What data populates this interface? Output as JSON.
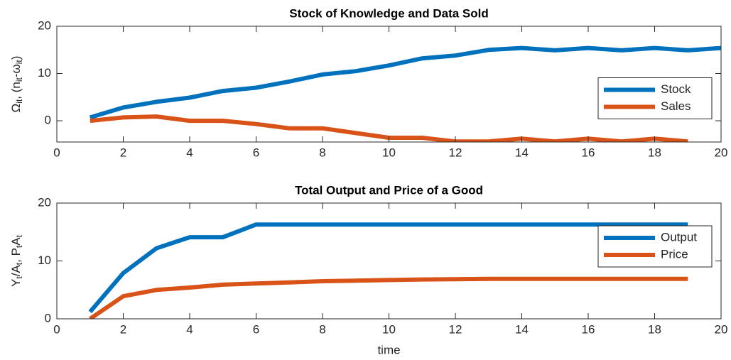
{
  "chart_data": [
    {
      "type": "line",
      "title": "Stock of Knowledge and Data Sold",
      "ylabel": [
        {
          "text": "Ω"
        },
        {
          "text": "it",
          "sub": true
        },
        {
          "text": ", (n"
        },
        {
          "text": "it",
          "sub": true
        },
        {
          "text": "-ω"
        },
        {
          "text": "it",
          "sub": true
        },
        {
          "text": ")"
        }
      ],
      "xlim": [
        0,
        20
      ],
      "xticks": [
        0,
        2,
        4,
        6,
        8,
        10,
        12,
        14,
        16,
        18,
        20
      ],
      "ylim": [
        -4.5,
        20
      ],
      "yticks": [
        0,
        10,
        20
      ],
      "legend": "east",
      "series": [
        {
          "name": "Stock",
          "color": "#0072BD",
          "x": [
            1,
            2,
            3,
            4,
            5,
            6,
            7,
            8,
            9,
            10,
            11,
            12,
            13,
            14,
            15,
            16,
            17,
            18,
            19,
            20
          ],
          "values": [
            0.7,
            2.8,
            4.0,
            4.9,
            6.3,
            7.0,
            8.3,
            9.8,
            10.5,
            11.7,
            13.2,
            13.8,
            15.0,
            15.4,
            14.9,
            15.4,
            14.9,
            15.4,
            14.9,
            15.4
          ]
        },
        {
          "name": "Sales",
          "color": "#D95319",
          "x": [
            1,
            2,
            3,
            4,
            5,
            6,
            7,
            8,
            9,
            10,
            11,
            12,
            13,
            14,
            15,
            16,
            17,
            18,
            19
          ],
          "values": [
            0,
            0.7,
            0.9,
            0,
            0,
            -0.7,
            -1.6,
            -1.6,
            -2.6,
            -3.6,
            -3.6,
            -4.4,
            -4.4,
            -3.8,
            -4.4,
            -3.8,
            -4.4,
            -3.8,
            -4.4
          ]
        }
      ]
    },
    {
      "type": "line",
      "title": "Total Output and Price of a Good",
      "xlabel": "time",
      "ylabel": [
        {
          "text": "Y"
        },
        {
          "text": "t",
          "sub": true
        },
        {
          "text": "/A"
        },
        {
          "text": "t",
          "sub": true
        },
        {
          "text": ", P"
        },
        {
          "text": "t",
          "sub": true
        },
        {
          "text": "A"
        },
        {
          "text": "t",
          "sub": true
        }
      ],
      "xlim": [
        0,
        20
      ],
      "xticks": [
        0,
        2,
        4,
        6,
        8,
        10,
        12,
        14,
        16,
        18,
        20
      ],
      "ylim": [
        0,
        20
      ],
      "yticks": [
        0,
        10,
        20
      ],
      "legend": "northeast",
      "series": [
        {
          "name": "Output",
          "color": "#0072BD",
          "x": [
            1,
            2,
            3,
            4,
            5,
            6,
            7,
            8,
            9,
            10,
            11,
            12,
            13,
            14,
            15,
            16,
            17,
            18,
            19
          ],
          "values": [
            1.2,
            7.9,
            12.2,
            14.1,
            14.1,
            16.3,
            16.3,
            16.3,
            16.3,
            16.3,
            16.3,
            16.3,
            16.3,
            16.3,
            16.3,
            16.3,
            16.3,
            16.3,
            16.3
          ]
        },
        {
          "name": "Price",
          "color": "#D95319",
          "x": [
            1,
            2,
            3,
            4,
            5,
            6,
            7,
            8,
            9,
            10,
            11,
            12,
            13,
            14,
            15,
            16,
            17,
            18,
            19
          ],
          "values": [
            0,
            3.9,
            5.0,
            5.4,
            5.9,
            6.1,
            6.3,
            6.5,
            6.6,
            6.7,
            6.8,
            6.85,
            6.9,
            6.9,
            6.9,
            6.9,
            6.9,
            6.9,
            6.9
          ]
        }
      ]
    }
  ]
}
